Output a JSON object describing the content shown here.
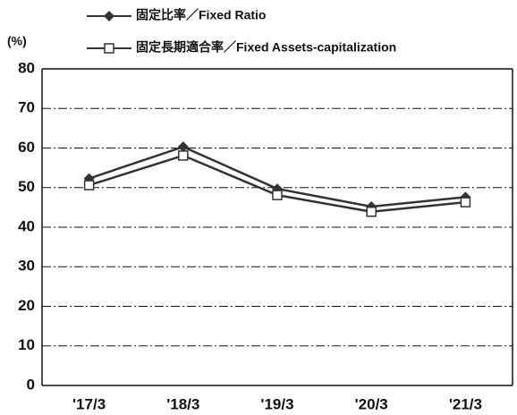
{
  "chart_data": {
    "type": "line",
    "ylabel": "(%)",
    "categories": [
      "'17/3",
      "'18/3",
      "'19/3",
      "'20/3",
      "'21/3"
    ],
    "series": [
      {
        "name": "固定比率／Fixed Ratio",
        "color": "#333333",
        "marker": "diamond",
        "values": [
          52.3,
          60.3,
          49.7,
          45.2,
          47.6
        ]
      },
      {
        "name": "固定長期適合率／Fixed Assets-capitalization",
        "color": "#333333",
        "marker": "square",
        "values": [
          50.6,
          58.1,
          48.1,
          43.9,
          46.3
        ]
      }
    ],
    "ylim": [
      0,
      80
    ],
    "yticks": [
      0,
      10,
      20,
      30,
      40,
      50,
      60,
      70,
      80
    ],
    "grid": true,
    "legend": "top-left"
  }
}
